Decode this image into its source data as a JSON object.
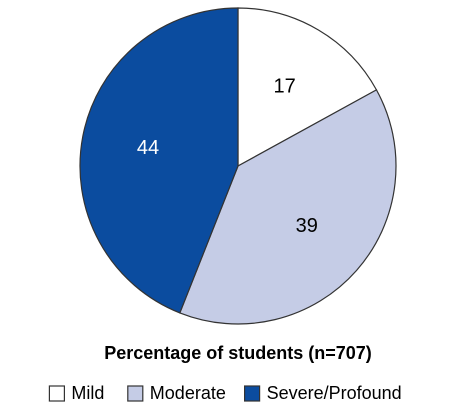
{
  "chart_data": {
    "type": "pie",
    "title": "Percentage of students (n=707)",
    "categories": [
      "Mild",
      "Moderate",
      "Severe/Profound"
    ],
    "values": [
      17,
      39,
      44
    ],
    "colors": [
      "#ffffff",
      "#c5cce6",
      "#0b4c9f"
    ],
    "label_colors": [
      "#000000",
      "#000000",
      "#ffffff"
    ]
  }
}
